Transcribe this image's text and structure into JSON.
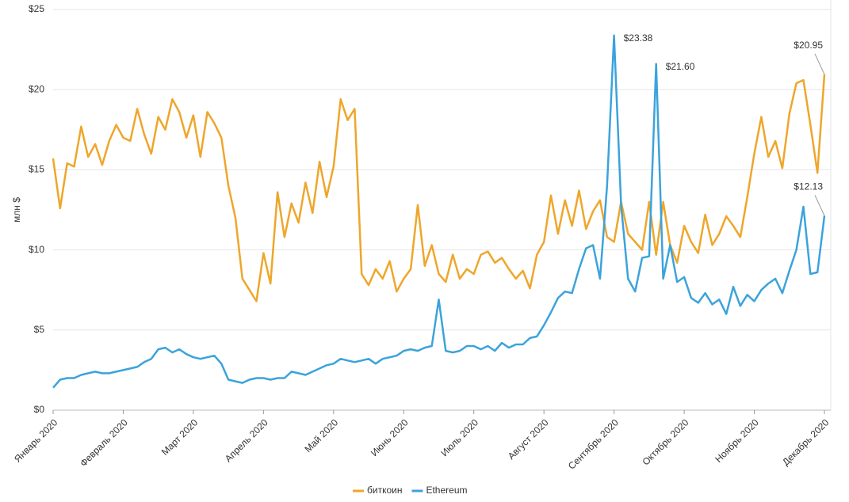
{
  "chart_data": {
    "type": "line",
    "y_label": "млн $",
    "categories": [
      "Январь 2020",
      null,
      null,
      null,
      null,
      null,
      null,
      null,
      null,
      null,
      "Февраль 2020",
      null,
      null,
      null,
      null,
      null,
      null,
      null,
      null,
      null,
      "Март 2020",
      null,
      null,
      null,
      null,
      null,
      null,
      null,
      null,
      null,
      "Апрель 2020",
      null,
      null,
      null,
      null,
      null,
      null,
      null,
      null,
      null,
      "Май 2020",
      null,
      null,
      null,
      null,
      null,
      null,
      null,
      null,
      null,
      "Июнь 2020",
      null,
      null,
      null,
      null,
      null,
      null,
      null,
      null,
      null,
      "Июль 2020",
      null,
      null,
      null,
      null,
      null,
      null,
      null,
      null,
      null,
      "Август 2020",
      null,
      null,
      null,
      null,
      null,
      null,
      null,
      null,
      null,
      "Сентябрь 2020",
      null,
      null,
      null,
      null,
      null,
      null,
      null,
      null,
      null,
      "Октябрь 2020",
      null,
      null,
      null,
      null,
      null,
      null,
      null,
      null,
      null,
      "Ноябрь 2020",
      null,
      null,
      null,
      null,
      null,
      null,
      null,
      null,
      null,
      "Декабрь 2020"
    ],
    "series": [
      {
        "name": "биткоин",
        "color": "#eea62b",
        "values": [
          15.7,
          12.6,
          15.4,
          15.2,
          17.7,
          15.8,
          16.6,
          15.3,
          16.8,
          17.8,
          17.0,
          16.8,
          18.8,
          17.2,
          16.0,
          18.3,
          17.5,
          19.4,
          18.6,
          17.0,
          18.4,
          15.8,
          18.6,
          17.9,
          17.0,
          14.0,
          12.0,
          8.2,
          7.5,
          6.8,
          9.8,
          7.9,
          13.6,
          10.8,
          12.9,
          11.7,
          14.2,
          12.3,
          15.5,
          13.3,
          15.2,
          19.4,
          18.1,
          18.8,
          8.5,
          7.8,
          8.8,
          8.2,
          9.3,
          7.4,
          8.2,
          8.8,
          12.8,
          9.0,
          10.3,
          8.5,
          8.0,
          9.7,
          8.2,
          8.8,
          8.5,
          9.7,
          9.9,
          9.2,
          9.5,
          8.8,
          8.2,
          8.7,
          7.6,
          9.7,
          10.5,
          13.4,
          11.0,
          13.1,
          11.5,
          13.7,
          11.3,
          12.4,
          13.1,
          10.8,
          10.5,
          13.0,
          11.0,
          10.5,
          10.0,
          13.0,
          9.7,
          13.0,
          10.3,
          9.2,
          11.5,
          10.5,
          9.8,
          12.2,
          10.3,
          11.0,
          12.1,
          11.5,
          10.8,
          13.3,
          16.0,
          18.3,
          15.8,
          16.8,
          15.1,
          18.5,
          20.4,
          20.6,
          17.8,
          14.8,
          20.95
        ],
        "value_labels": [
          null,
          null,
          null,
          null,
          null,
          null,
          null,
          null,
          null,
          null,
          null,
          null,
          null,
          null,
          null,
          null,
          null,
          null,
          null,
          null,
          null,
          null,
          null,
          null,
          null,
          null,
          null,
          null,
          null,
          null,
          null,
          null,
          null,
          null,
          null,
          null,
          null,
          null,
          null,
          null,
          null,
          null,
          null,
          null,
          null,
          null,
          null,
          null,
          null,
          null,
          null,
          null,
          null,
          null,
          null,
          null,
          null,
          null,
          null,
          null,
          null,
          null,
          null,
          null,
          null,
          null,
          null,
          null,
          null,
          null,
          null,
          null,
          null,
          null,
          null,
          null,
          null,
          null,
          null,
          null,
          null,
          null,
          null,
          null,
          null,
          null,
          null,
          null,
          null,
          null,
          null,
          null,
          null,
          null,
          null,
          null,
          null,
          null,
          null,
          null,
          null,
          null,
          null,
          null,
          null,
          null,
          null,
          null,
          null,
          null,
          "$20.95"
        ]
      },
      {
        "name": "Ethereum",
        "color": "#3ba3dc",
        "values": [
          1.4,
          1.9,
          2.0,
          2.0,
          2.2,
          2.3,
          2.4,
          2.3,
          2.3,
          2.4,
          2.5,
          2.6,
          2.7,
          3.0,
          3.2,
          3.8,
          3.9,
          3.6,
          3.8,
          3.5,
          3.3,
          3.2,
          3.3,
          3.4,
          2.9,
          1.9,
          1.8,
          1.7,
          1.9,
          2.0,
          2.0,
          1.9,
          2.0,
          2.0,
          2.4,
          2.3,
          2.2,
          2.4,
          2.6,
          2.8,
          2.9,
          3.2,
          3.1,
          3.0,
          3.1,
          3.2,
          2.9,
          3.2,
          3.3,
          3.4,
          3.7,
          3.8,
          3.7,
          3.9,
          4.0,
          6.9,
          3.7,
          3.6,
          3.7,
          4.0,
          4.0,
          3.8,
          4.0,
          3.7,
          4.2,
          3.9,
          4.1,
          4.1,
          4.5,
          4.6,
          5.3,
          6.1,
          7.0,
          7.4,
          7.3,
          8.8,
          10.1,
          10.3,
          8.2,
          14.0,
          23.38,
          12.8,
          8.2,
          7.4,
          9.5,
          9.6,
          21.6,
          8.2,
          10.3,
          8.0,
          8.3,
          7.0,
          6.7,
          7.3,
          6.6,
          6.9,
          6.0,
          7.7,
          6.5,
          7.2,
          6.8,
          7.5,
          7.9,
          8.2,
          7.3,
          8.7,
          10.0,
          12.7,
          8.5,
          8.6,
          12.13
        ],
        "value_labels": [
          null,
          null,
          null,
          null,
          null,
          null,
          null,
          null,
          null,
          null,
          null,
          null,
          null,
          null,
          null,
          null,
          null,
          null,
          null,
          null,
          null,
          null,
          null,
          null,
          null,
          null,
          null,
          null,
          null,
          null,
          null,
          null,
          null,
          null,
          null,
          null,
          null,
          null,
          null,
          null,
          null,
          null,
          null,
          null,
          null,
          null,
          null,
          null,
          null,
          null,
          null,
          null,
          null,
          null,
          null,
          null,
          null,
          null,
          null,
          null,
          null,
          null,
          null,
          null,
          null,
          null,
          null,
          null,
          null,
          null,
          null,
          null,
          null,
          null,
          null,
          null,
          null,
          null,
          null,
          null,
          "$23.38",
          null,
          null,
          null,
          null,
          null,
          "$21.60",
          null,
          null,
          null,
          null,
          null,
          null,
          null,
          null,
          null,
          null,
          null,
          null,
          null,
          null,
          null,
          null,
          null,
          null,
          null,
          null,
          null,
          null,
          null,
          "$12.13"
        ]
      }
    ],
    "ylim": [
      0,
      25
    ],
    "yticks": [
      {
        "value": 0,
        "label": "$0"
      },
      {
        "value": 5,
        "label": "$5"
      },
      {
        "value": 10,
        "label": "$10"
      },
      {
        "value": 15,
        "label": "$15"
      },
      {
        "value": 20,
        "label": "$20"
      },
      {
        "value": 25,
        "label": "$25"
      }
    ],
    "grid": true,
    "legend": "bottom"
  }
}
